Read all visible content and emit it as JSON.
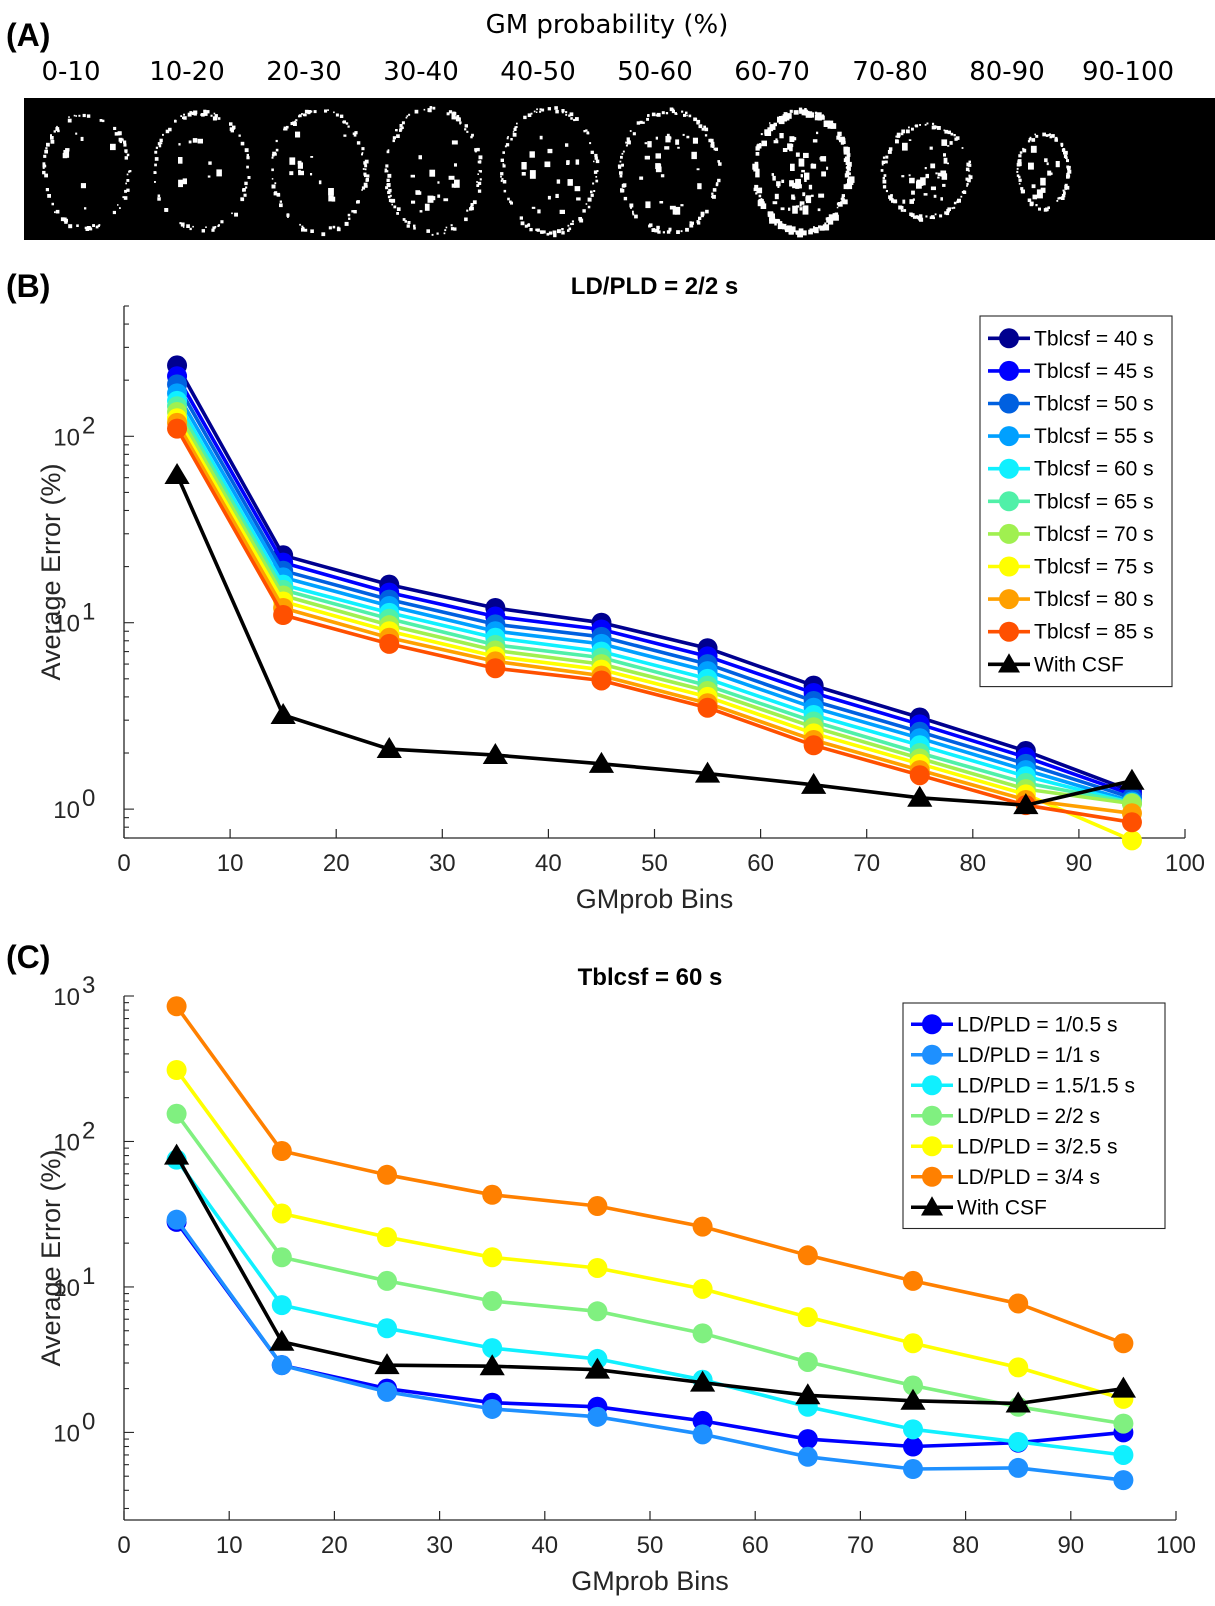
{
  "panel_a": {
    "tag": "(A)",
    "title": "GM probability (%)",
    "bins": [
      "0-10",
      "10-20",
      "20-30",
      "30-40",
      "40-50",
      "50-60",
      "60-70",
      "70-80",
      "80-90",
      "90-100"
    ]
  },
  "chart_data": [
    {
      "type": "line",
      "panel": "(B)",
      "title": "LD/PLD = 2/2 s",
      "xlabel": "GMprob Bins",
      "ylabel": "Average Error (%)",
      "xlim": [
        0,
        100
      ],
      "ylim": [
        0.7,
        500
      ],
      "yscale": "log",
      "xticks": [
        0,
        10,
        20,
        30,
        40,
        50,
        60,
        70,
        80,
        90,
        100
      ],
      "yticks": [
        1,
        10,
        100
      ],
      "ytick_labels": [
        [
          "10",
          "0"
        ],
        [
          "10",
          "1"
        ],
        [
          "10",
          "2"
        ]
      ],
      "grid": false,
      "legend_position": "top-right",
      "x": [
        5,
        15,
        25,
        35,
        45,
        55,
        65,
        75,
        85,
        95
      ],
      "series": [
        {
          "name": "Tblcsf = 40 s",
          "color": "#00008f",
          "marker": "circle",
          "values": [
            240,
            23,
            16,
            12,
            10,
            7.3,
            4.6,
            3.1,
            2.05,
            1.25
          ]
        },
        {
          "name": "Tblcsf = 45 s",
          "color": "#0000ff",
          "marker": "circle",
          "values": [
            210,
            21,
            14.5,
            10.8,
            9.2,
            6.6,
            4.2,
            2.85,
            1.9,
            1.2
          ]
        },
        {
          "name": "Tblcsf = 50 s",
          "color": "#0060e0",
          "marker": "circle",
          "values": [
            190,
            19,
            13.3,
            9.8,
            8.4,
            6.0,
            3.8,
            2.6,
            1.75,
            1.15
          ]
        },
        {
          "name": "Tblcsf = 55 s",
          "color": "#00a0ff",
          "marker": "circle",
          "values": [
            170,
            17.5,
            12.3,
            9.0,
            7.7,
            5.5,
            3.5,
            2.4,
            1.62,
            1.1
          ]
        },
        {
          "name": "Tblcsf = 60 s",
          "color": "#10f0ff",
          "marker": "circle",
          "values": [
            155,
            16,
            11.3,
            8.3,
            7.0,
            5.0,
            3.2,
            2.2,
            1.5,
            1.08
          ]
        },
        {
          "name": "Tblcsf = 65 s",
          "color": "#50f0a8",
          "marker": "circle",
          "values": [
            145,
            15,
            10.5,
            7.6,
            6.5,
            4.6,
            2.95,
            2.0,
            1.38,
            1.08
          ]
        },
        {
          "name": "Tblcsf = 70 s",
          "color": "#a0f050",
          "marker": "circle",
          "values": [
            135,
            14,
            9.7,
            7.1,
            6.0,
            4.3,
            2.75,
            1.87,
            1.28,
            1.07
          ]
        },
        {
          "name": "Tblcsf = 75 s",
          "color": "#ffff00",
          "marker": "circle",
          "values": [
            125,
            13,
            9.0,
            6.6,
            5.6,
            4.0,
            2.55,
            1.75,
            1.2,
            0.68
          ]
        },
        {
          "name": "Tblcsf = 80 s",
          "color": "#ffa000",
          "marker": "circle",
          "values": [
            118,
            12,
            8.3,
            6.2,
            5.2,
            3.7,
            2.35,
            1.62,
            1.12,
            0.95
          ]
        },
        {
          "name": "Tblcsf = 85 s",
          "color": "#ff5000",
          "marker": "circle",
          "values": [
            110,
            11,
            7.7,
            5.7,
            4.9,
            3.5,
            2.2,
            1.52,
            1.05,
            0.85
          ]
        },
        {
          "name": "With CSF",
          "color": "#000000",
          "marker": "triangle",
          "values": [
            62,
            3.2,
            2.1,
            1.95,
            1.75,
            1.55,
            1.35,
            1.15,
            1.05,
            1.42
          ]
        }
      ]
    },
    {
      "type": "line",
      "panel": "(C)",
      "title": "Tblcsf = 60 s",
      "xlabel": "GMprob Bins",
      "ylabel": "Average Error (%)",
      "xlim": [
        0,
        100
      ],
      "ylim": [
        0.25,
        1000
      ],
      "yscale": "log",
      "xticks": [
        0,
        10,
        20,
        30,
        40,
        50,
        60,
        70,
        80,
        90,
        100
      ],
      "yticks": [
        1,
        10,
        100,
        1000
      ],
      "ytick_labels": [
        [
          "10",
          "0"
        ],
        [
          "10",
          "1"
        ],
        [
          "10",
          "2"
        ],
        [
          "10",
          "3"
        ]
      ],
      "grid": false,
      "legend_position": "top-right",
      "x": [
        5,
        15,
        25,
        35,
        45,
        55,
        65,
        75,
        85,
        95
      ],
      "series": [
        {
          "name": "LD/PLD = 1/0.5 s",
          "color": "#0000ff",
          "marker": "circle",
          "values": [
            28,
            2.9,
            2.0,
            1.6,
            1.5,
            1.2,
            0.9,
            0.8,
            0.85,
            1.0
          ]
        },
        {
          "name": "LD/PLD = 1/1 s",
          "color": "#1e90ff",
          "marker": "circle",
          "values": [
            29,
            2.9,
            1.9,
            1.45,
            1.28,
            0.97,
            0.68,
            0.56,
            0.57,
            0.47
          ]
        },
        {
          "name": "LD/PLD = 1.5/1.5 s",
          "color": "#10f0ff",
          "marker": "circle",
          "values": [
            75,
            7.5,
            5.2,
            3.8,
            3.2,
            2.3,
            1.5,
            1.05,
            0.86,
            0.7
          ]
        },
        {
          "name": "LD/PLD = 2/2 s",
          "color": "#80f080",
          "marker": "circle",
          "values": [
            155,
            16,
            11,
            8.0,
            6.8,
            4.8,
            3.05,
            2.1,
            1.5,
            1.15
          ]
        },
        {
          "name": "LD/PLD = 3/2.5 s",
          "color": "#ffff00",
          "marker": "circle",
          "values": [
            310,
            32,
            22,
            16,
            13.5,
            9.7,
            6.2,
            4.1,
            2.8,
            1.7
          ]
        },
        {
          "name": "LD/PLD = 3/4 s",
          "color": "#ff8000",
          "marker": "circle",
          "values": [
            850,
            86,
            59,
            43,
            36,
            26,
            16.5,
            11,
            7.7,
            4.1
          ]
        },
        {
          "name": "With CSF",
          "color": "#000000",
          "marker": "triangle",
          "values": [
            80,
            4.2,
            2.9,
            2.85,
            2.7,
            2.2,
            1.8,
            1.65,
            1.58,
            2.0
          ]
        }
      ]
    }
  ]
}
